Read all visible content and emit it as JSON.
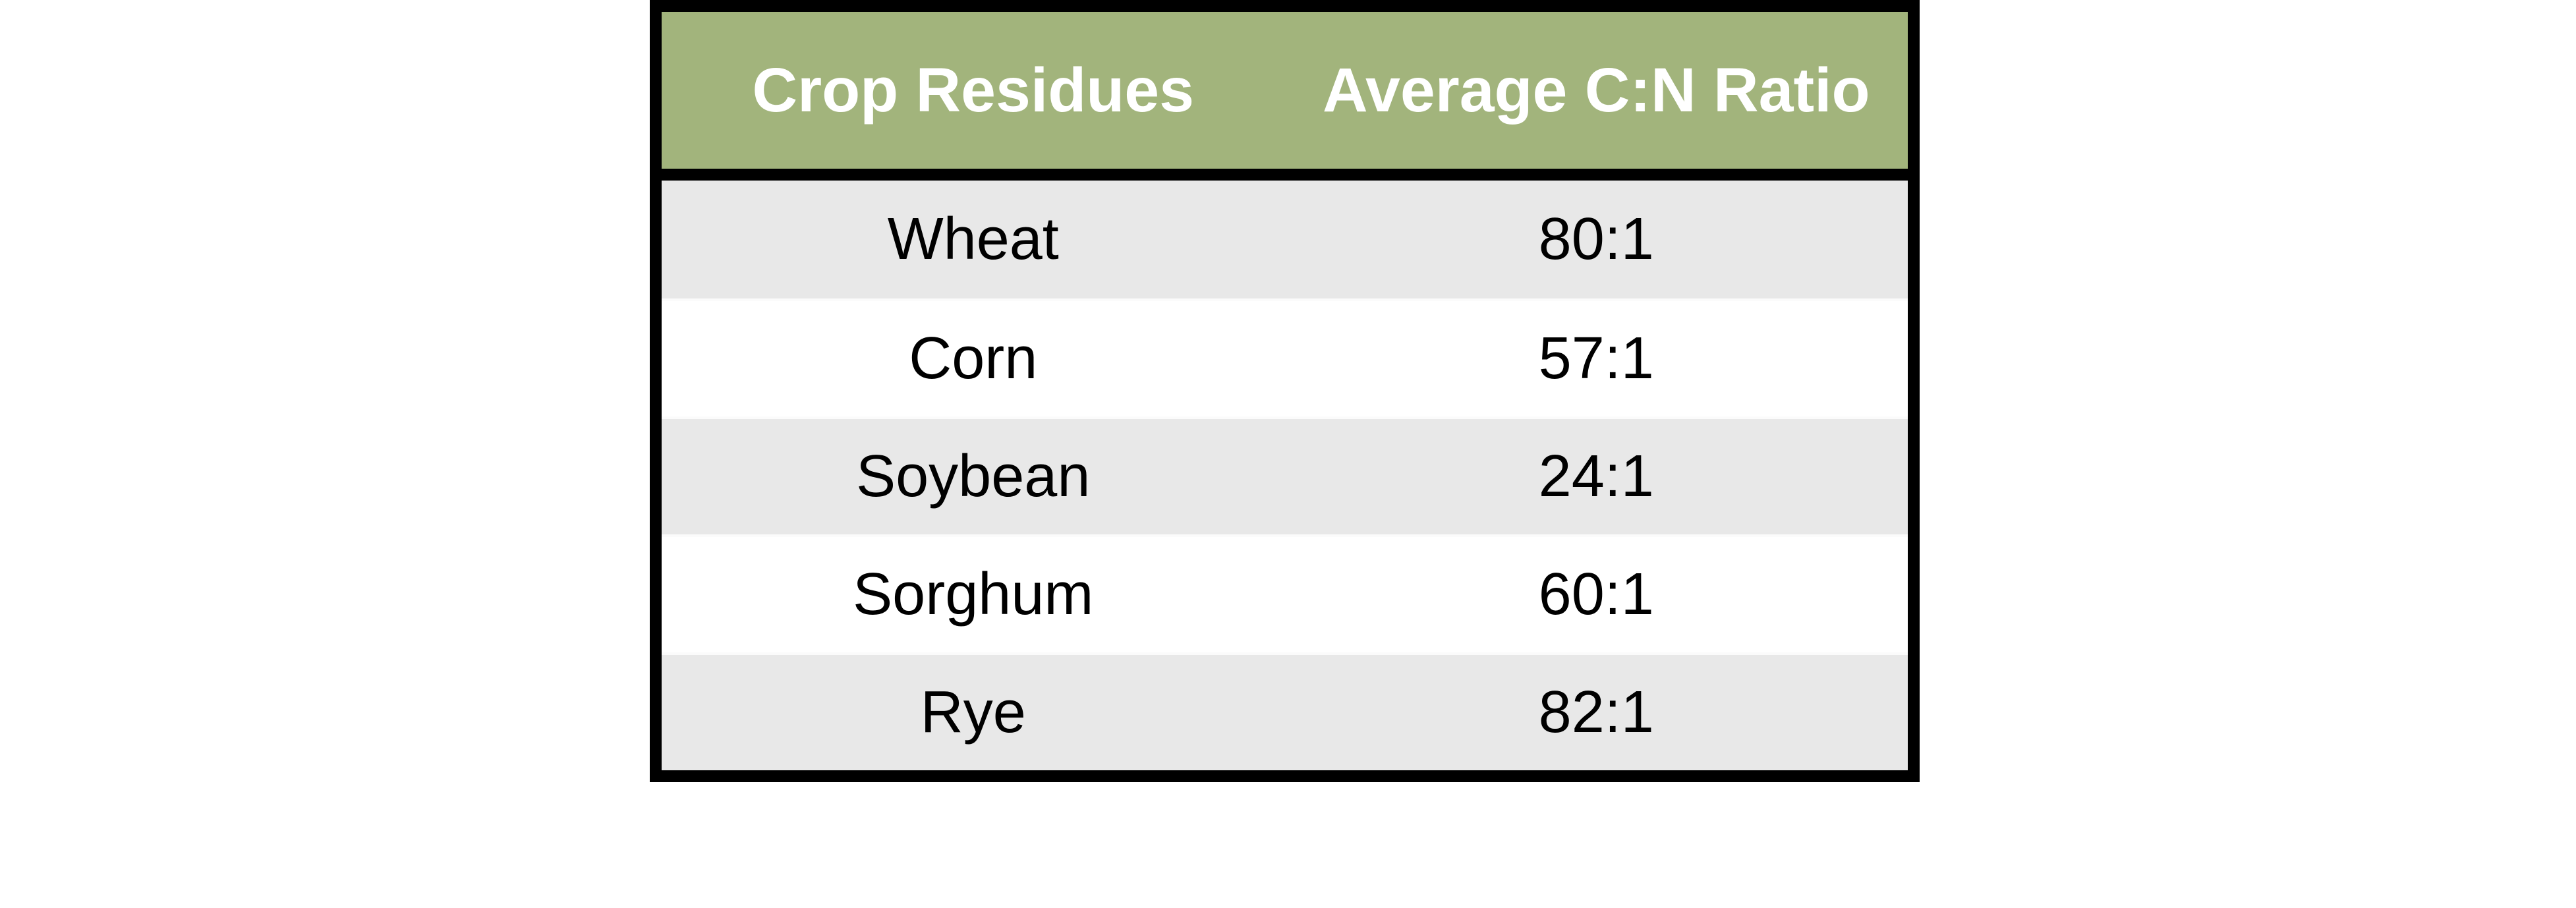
{
  "chart_data": {
    "type": "table",
    "title": "",
    "columns": [
      "Crop Residues",
      "Average C:N Ratio"
    ],
    "rows": [
      [
        "Wheat",
        "80:1"
      ],
      [
        "Corn",
        "57:1"
      ],
      [
        "Soybean",
        "24:1"
      ],
      [
        "Sorghum",
        "60:1"
      ],
      [
        "Rye",
        "82:1"
      ]
    ],
    "layout_hints": {
      "header_style": "bold white text on olive-green band",
      "row_banding": "odd rows light gray, even rows white",
      "alignment": "all cells center-aligned, two equal-width columns",
      "outer_border": "thick black"
    }
  },
  "colors": {
    "page_bg": "#ffffff",
    "header_bg": "#a2b47c",
    "header_text": "#ffffff",
    "row_bg": "#ffffff",
    "row_band_bg": "#e8e8e8",
    "separator": "#fbfbfb",
    "border": "#000000",
    "cell_text": "#000000"
  }
}
